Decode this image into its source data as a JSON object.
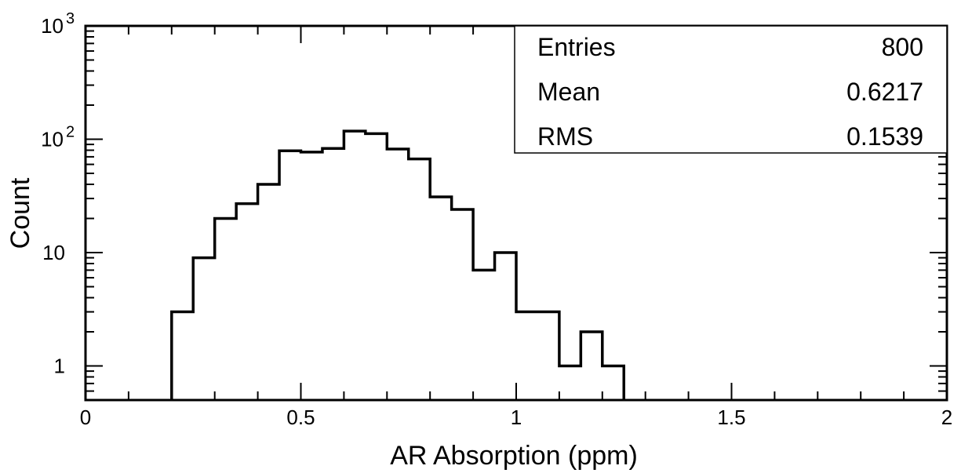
{
  "chart_data": {
    "type": "histogram",
    "xlabel": "AR Absorption (ppm)",
    "ylabel": "Count",
    "x_scale": "linear",
    "y_scale": "log",
    "xlim": [
      0,
      2
    ],
    "ylim": [
      0.5,
      1000
    ],
    "x_ticks": [
      {
        "value": 0,
        "label": "0"
      },
      {
        "value": 0.5,
        "label": "0.5"
      },
      {
        "value": 1,
        "label": "1"
      },
      {
        "value": 1.5,
        "label": "1.5"
      },
      {
        "value": 2,
        "label": "2"
      }
    ],
    "y_ticks": [
      {
        "value": 1,
        "label": "1"
      },
      {
        "value": 10,
        "label": "10"
      },
      {
        "value": 100,
        "label": "10",
        "exponent": "2"
      },
      {
        "value": 1000,
        "label": "10",
        "exponent": "3"
      }
    ],
    "bin_width": 0.05,
    "bins": [
      {
        "x_low": 0.2,
        "x_high": 0.25,
        "count": 3
      },
      {
        "x_low": 0.25,
        "x_high": 0.3,
        "count": 9
      },
      {
        "x_low": 0.3,
        "x_high": 0.35,
        "count": 20
      },
      {
        "x_low": 0.35,
        "x_high": 0.4,
        "count": 27
      },
      {
        "x_low": 0.4,
        "x_high": 0.45,
        "count": 40
      },
      {
        "x_low": 0.45,
        "x_high": 0.5,
        "count": 79
      },
      {
        "x_low": 0.5,
        "x_high": 0.55,
        "count": 77
      },
      {
        "x_low": 0.55,
        "x_high": 0.6,
        "count": 83
      },
      {
        "x_low": 0.6,
        "x_high": 0.65,
        "count": 118
      },
      {
        "x_low": 0.65,
        "x_high": 0.7,
        "count": 112
      },
      {
        "x_low": 0.7,
        "x_high": 0.75,
        "count": 82
      },
      {
        "x_low": 0.75,
        "x_high": 0.8,
        "count": 67
      },
      {
        "x_low": 0.8,
        "x_high": 0.85,
        "count": 31
      },
      {
        "x_low": 0.85,
        "x_high": 0.9,
        "count": 24
      },
      {
        "x_low": 0.9,
        "x_high": 0.95,
        "count": 7
      },
      {
        "x_low": 0.95,
        "x_high": 1.0,
        "count": 10
      },
      {
        "x_low": 1.0,
        "x_high": 1.05,
        "count": 3
      },
      {
        "x_low": 1.05,
        "x_high": 1.1,
        "count": 3
      },
      {
        "x_low": 1.1,
        "x_high": 1.15,
        "count": 1
      },
      {
        "x_low": 1.15,
        "x_high": 1.2,
        "count": 2
      },
      {
        "x_low": 1.2,
        "x_high": 1.25,
        "count": 1
      }
    ],
    "stats": {
      "position": "top-right",
      "rows": [
        {
          "label": "Entries",
          "value": "800"
        },
        {
          "label": "Mean",
          "value": "0.6217"
        },
        {
          "label": "RMS",
          "value": "0.1539"
        }
      ]
    },
    "grid": false,
    "colors": {
      "line": "#000000",
      "background": "#ffffff"
    }
  }
}
